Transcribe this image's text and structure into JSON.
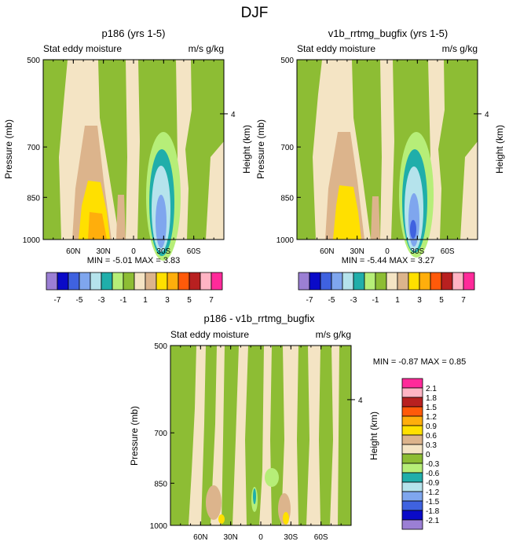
{
  "figure": {
    "title": "DJF"
  },
  "chart_data": [
    {
      "type": "contour",
      "title": "p186 (yrs 1-5)",
      "subtitle_left": "Stat eddy moisture",
      "subtitle_right": "m/s g/kg",
      "ylabel": "Pressure (mb)",
      "ylabel_right": "Height (km)",
      "yticks": [
        "500",
        "700",
        "850",
        "1000"
      ],
      "ytick_values": [
        500,
        700,
        850,
        1000
      ],
      "right_ticks": [
        "4"
      ],
      "xticks": [
        "60N",
        "30N",
        "0",
        "30S",
        "60S"
      ],
      "xtick_values": [
        60,
        30,
        0,
        -30,
        -60
      ],
      "xlim": [
        90,
        -90
      ],
      "ylim": [
        1000,
        500
      ],
      "stats": "MIN = -5.01   MAX =  3.83",
      "min": -5.01,
      "max": 3.83
    },
    {
      "type": "contour",
      "title": "v1b_rrtmg_bugfix (yrs 1-5)",
      "subtitle_left": "Stat eddy moisture",
      "subtitle_right": "m/s g/kg",
      "ylabel": "Pressure (mb)",
      "ylabel_right": "Height (km)",
      "yticks": [
        "500",
        "700",
        "850",
        "1000"
      ],
      "ytick_values": [
        500,
        700,
        850,
        1000
      ],
      "right_ticks": [
        "4"
      ],
      "xticks": [
        "60N",
        "30N",
        "0",
        "30S",
        "60S"
      ],
      "xtick_values": [
        60,
        30,
        0,
        -30,
        -60
      ],
      "xlim": [
        90,
        -90
      ],
      "ylim": [
        1000,
        500
      ],
      "stats": "MIN = -5.44   MAX =  3.27",
      "min": -5.44,
      "max": 3.27
    },
    {
      "type": "contour",
      "title": "p186 - v1b_rrtmg_bugfix",
      "subtitle_left": "Stat eddy moisture",
      "subtitle_right": "m/s g/kg",
      "ylabel": "Pressure (mb)",
      "ylabel_right": "Height (km)",
      "yticks": [
        "500",
        "700",
        "850",
        "1000"
      ],
      "ytick_values": [
        500,
        700,
        850,
        1000
      ],
      "right_ticks": [
        "4"
      ],
      "xticks": [
        "60N",
        "30N",
        "0",
        "30S",
        "60S"
      ],
      "xtick_values": [
        60,
        30,
        0,
        -30,
        -60
      ],
      "xlim": [
        90,
        -90
      ],
      "ylim": [
        1000,
        500
      ],
      "stats": "MIN = -0.87   MAX =  0.85",
      "min": -0.87,
      "max": 0.85
    }
  ],
  "colorbar_top": {
    "colors": [
      "#9b7fd4",
      "#0a0ac8",
      "#3f62e0",
      "#7fa6ee",
      "#b5e3ec",
      "#20aeaa",
      "#b6ee78",
      "#8dbd34",
      "#f4e4c4",
      "#dcb48c",
      "#ffe000",
      "#ffae0c",
      "#ff5a0a",
      "#b82020",
      "#ffb4c4",
      "#ff2a9a"
    ],
    "labels": [
      "-7",
      "-5",
      "-3",
      "-1",
      "1",
      "3",
      "5",
      "7"
    ]
  },
  "colorbar_diff": {
    "colors": [
      "#ff2a9a",
      "#ffb4c4",
      "#b82020",
      "#ff5a0a",
      "#ffae0c",
      "#ffe000",
      "#dcb48c",
      "#f4e4c4",
      "#8dbd34",
      "#b6ee78",
      "#20aeaa",
      "#b5e3ec",
      "#7fa6ee",
      "#3f62e0",
      "#0a0ac8",
      "#9b7fd4"
    ],
    "labels": [
      "2.1",
      "1.8",
      "1.5",
      "1.2",
      "0.9",
      "0.6",
      "0.3",
      "0",
      "-0.3",
      "-0.6",
      "-0.9",
      "-1.2",
      "-1.5",
      "-1.8",
      "-2.1"
    ]
  }
}
